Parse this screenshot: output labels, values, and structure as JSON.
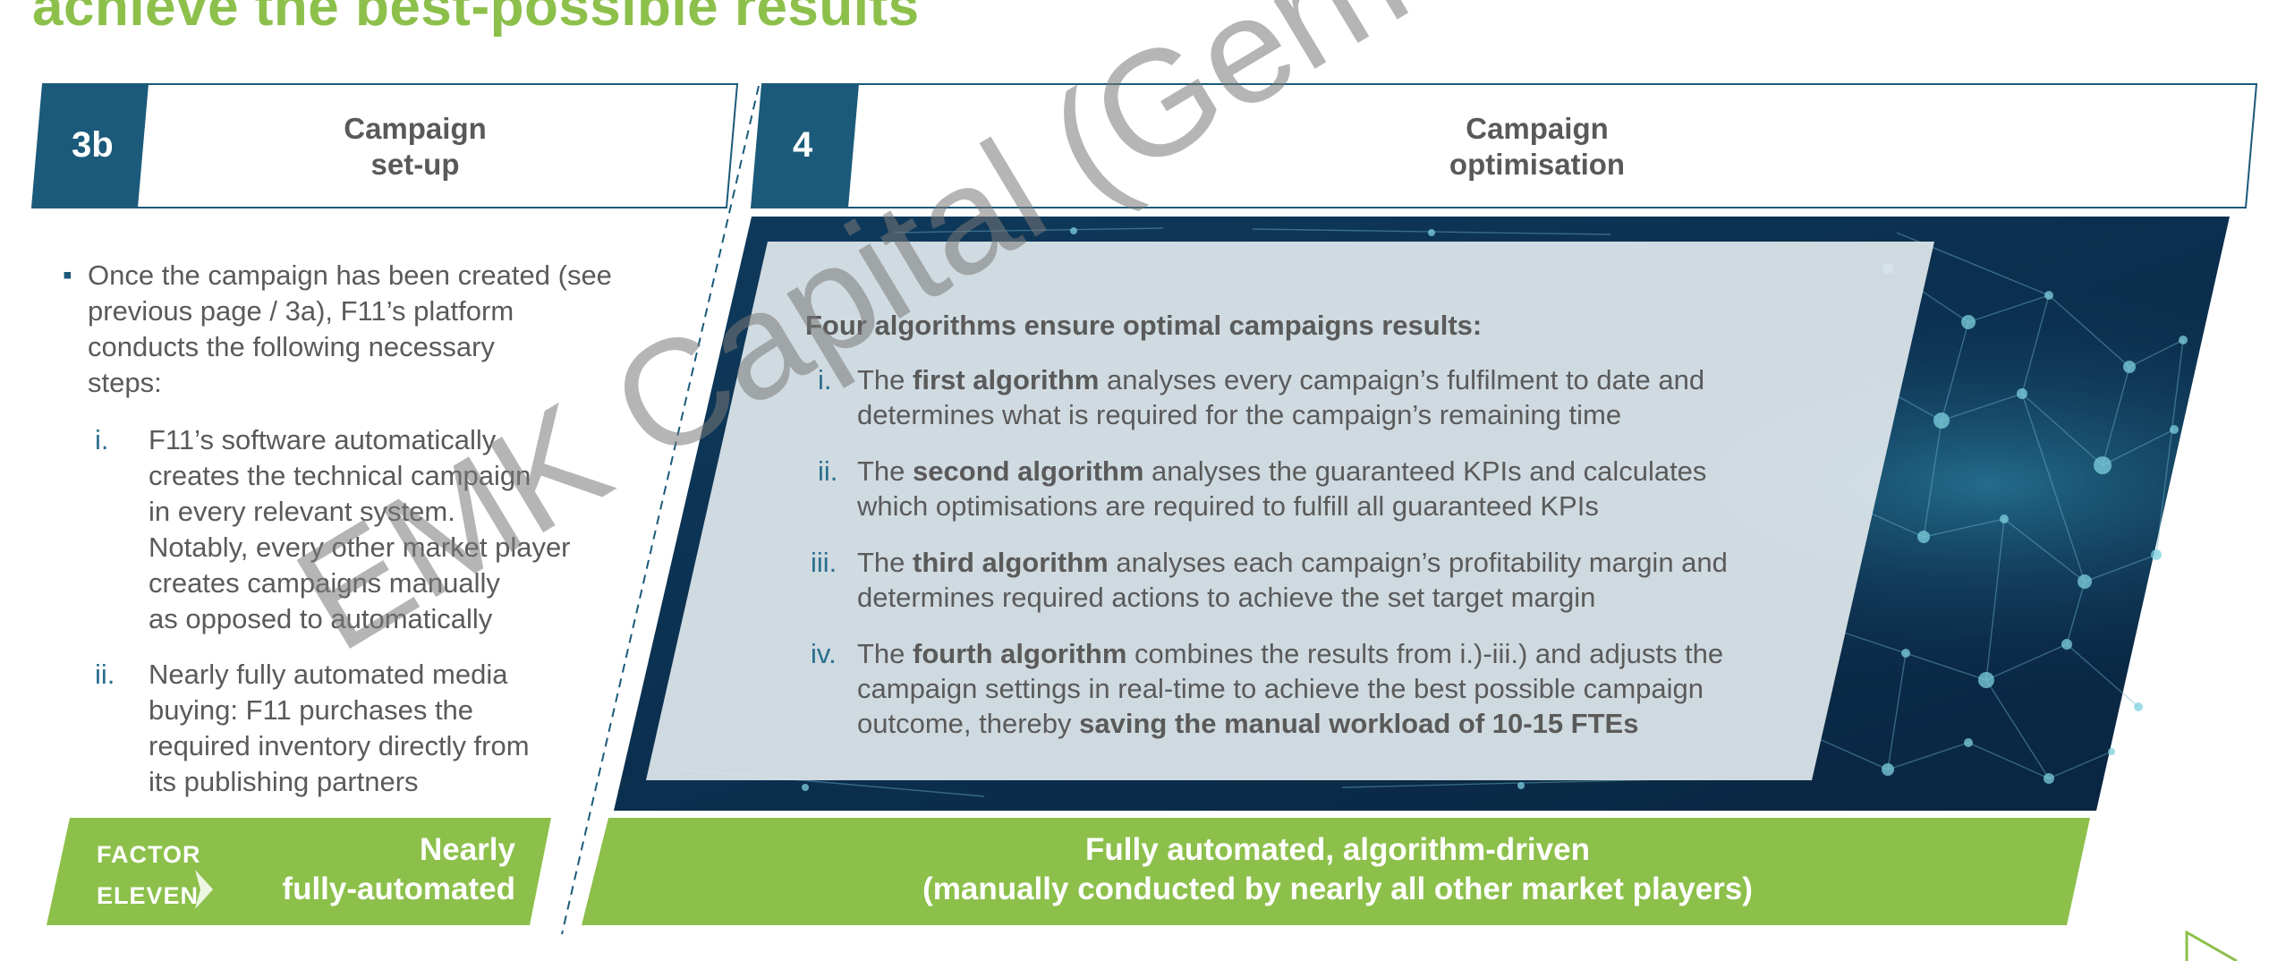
{
  "page": {
    "title": "achieve the best-possible results"
  },
  "left": {
    "number": "3b",
    "header_line1": "Campaign",
    "header_line2": "set-up",
    "intro_lines": [
      "Once the campaign has been created (see",
      "previous page / 3a), F11’s platform",
      "conducts the following necessary",
      "steps:"
    ],
    "items": [
      {
        "num": "i.",
        "lines": [
          "F11’s software automatically",
          "creates the technical campaign",
          "in every relevant system.",
          "Notably, every other market player",
          "creates campaigns manually",
          "as opposed to automatically"
        ]
      },
      {
        "num": "ii.",
        "lines": [
          "Nearly fully automated media",
          "buying: F11 purchases the",
          "required inventory directly from",
          "its publishing partners"
        ]
      }
    ],
    "banner_line1": "Nearly",
    "banner_line2": "fully-automated",
    "logo_line1": "FACTOR",
    "logo_line2": "ELEVEN"
  },
  "right": {
    "number": "4",
    "header_line1": "Campaign",
    "header_line2": "optimisation",
    "algo_title": "Four algorithms ensure optimal campaigns results:",
    "algos": [
      {
        "num": "i.",
        "pre": "The ",
        "bold": "first algorithm",
        "line1_rest": " analyses every campaign’s fulfilment to date and",
        "line2": "determines what is required for the campaign’s remaining time"
      },
      {
        "num": "ii.",
        "pre": "The ",
        "bold": "second algorithm",
        "line1_rest": " analyses the guaranteed KPIs and calculates",
        "line2": "which optimisations are required to fulfill all guaranteed KPIs"
      },
      {
        "num": "iii.",
        "pre": "The ",
        "bold": "third algorithm",
        "line1_rest": " analyses each campaign’s profitability margin and",
        "line2": "determines required actions to achieve the set target margin"
      }
    ],
    "algo4": {
      "num": "iv.",
      "pre": "The ",
      "bold": "fourth algorithm",
      "line1_rest": " combines the results from i.)-iii.) and adjusts the",
      "line2": "campaign settings in real-time to achieve the best possible campaign",
      "line3_pre": "outcome, thereby ",
      "line3_bold": "saving the manual workload of 10-15 FTEs"
    },
    "banner_line1": "Fully automated, algorithm-driven",
    "banner_line2": "(manually conducted by nearly all other market players)"
  },
  "watermark": "EMK Capital (Germany) GmbH",
  "colors": {
    "green": "#8cc04b",
    "navy": "#1b5a7a",
    "teal": "#2a6f8f",
    "text": "#5a5a5a"
  }
}
